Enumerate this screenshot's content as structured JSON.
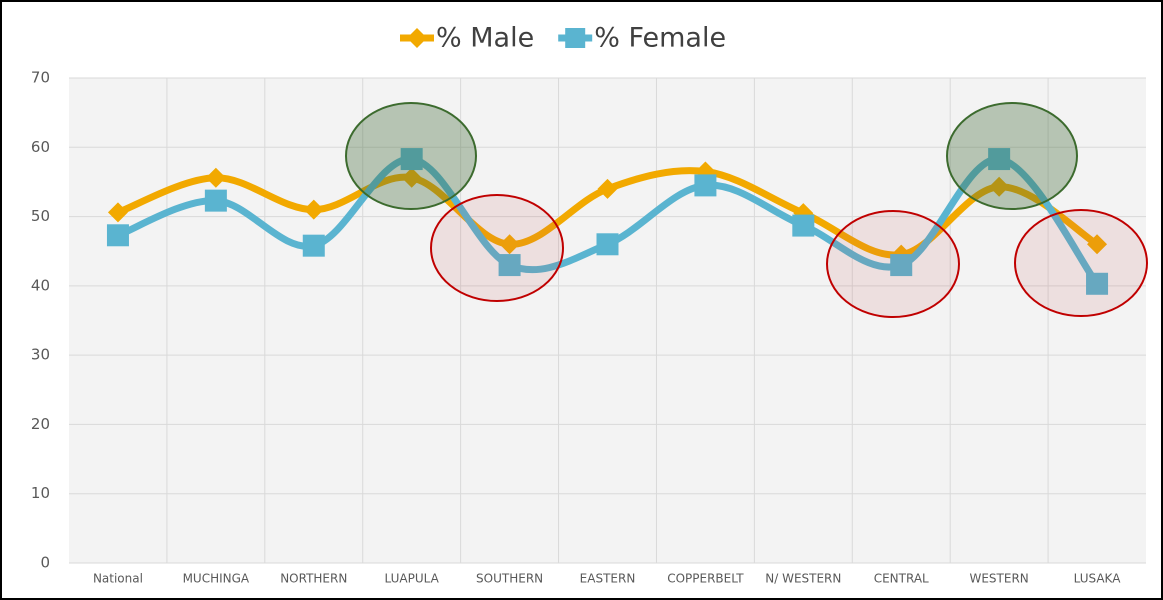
{
  "chart_data": {
    "type": "line",
    "categories": [
      "National",
      "MUCHINGA",
      "NORTHERN",
      "LUAPULA",
      "SOUTHERN",
      "EASTERN",
      "COPPERBELT",
      "N/ WESTERN",
      "CENTRAL",
      "WESTERN",
      "LUSAKA"
    ],
    "series": [
      {
        "name": "% Male",
        "color": "#f2a900",
        "marker": "diamond",
        "values": [
          50.6,
          55.6,
          51.0,
          55.6,
          46.0,
          54.0,
          56.5,
          50.5,
          44.5,
          54.3,
          46.0
        ]
      },
      {
        "name": "% Female",
        "color": "#5ab4d0",
        "marker": "square",
        "values": [
          47.3,
          52.3,
          45.8,
          58.3,
          43.0,
          46.0,
          54.5,
          48.7,
          43.0,
          58.3,
          40.3
        ]
      }
    ],
    "ylim": [
      0,
      70
    ],
    "yticks": [
      0,
      10,
      20,
      30,
      40,
      50,
      60,
      70
    ],
    "grid": true,
    "smooth": true,
    "legend": "top"
  }
}
